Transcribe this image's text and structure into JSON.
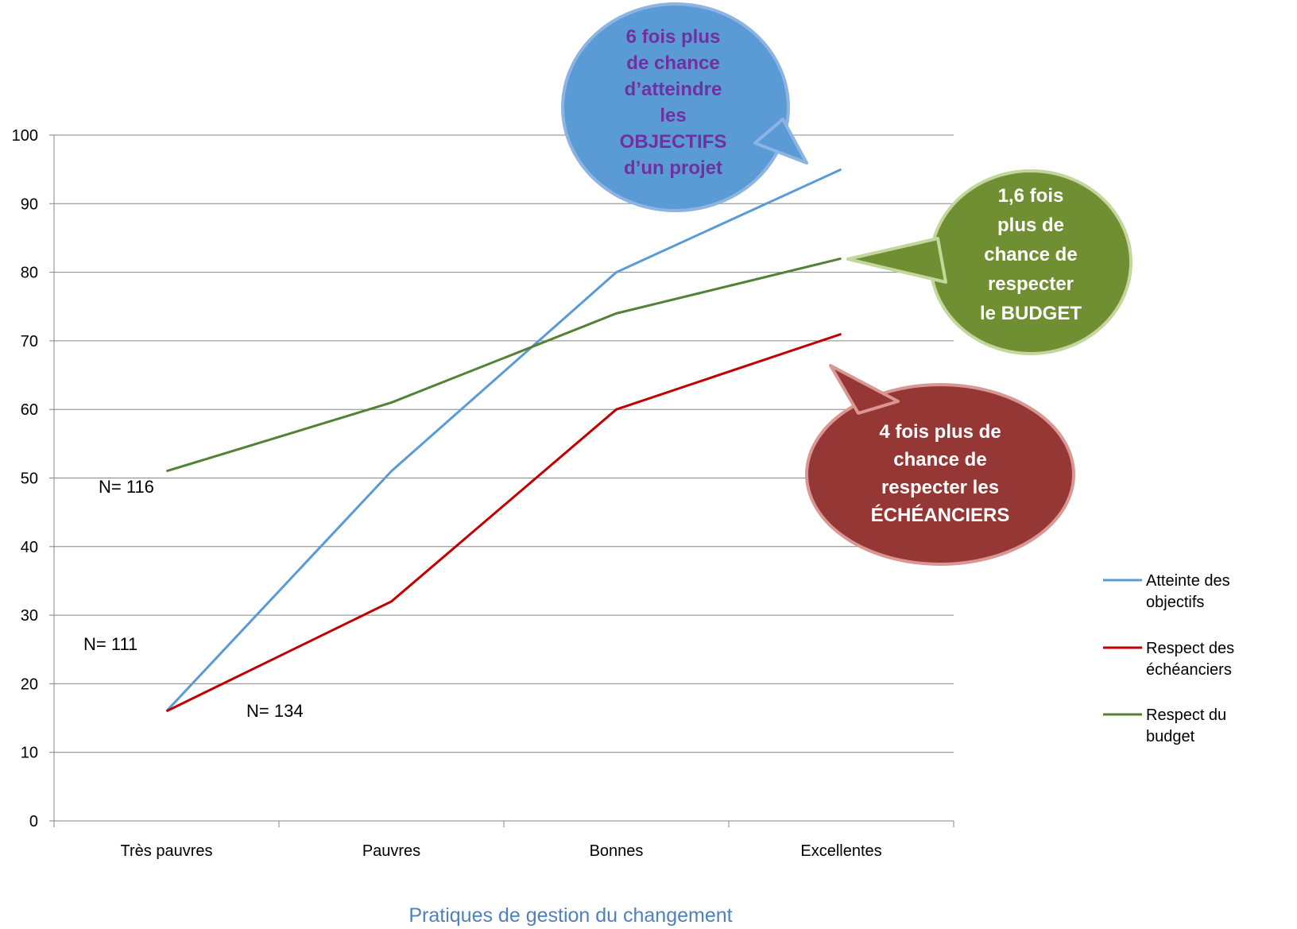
{
  "chart_data": {
    "type": "line",
    "categories": [
      "Très pauvres",
      "Pauvres",
      "Bonnes",
      "Excellentes"
    ],
    "series": [
      {
        "name": "Atteinte des objectifs",
        "legend_lines": [
          "Atteinte des",
          "objectifs"
        ],
        "color": "#5b9bd5",
        "values": [
          16,
          51,
          80,
          95
        ]
      },
      {
        "name": "Respect des échéanciers",
        "legend_lines": [
          "Respect des",
          "échéanciers"
        ],
        "color": "#c00000",
        "values": [
          16,
          32,
          60,
          71
        ]
      },
      {
        "name": "Respect du budget",
        "legend_lines": [
          "Respect du",
          "budget"
        ],
        "color": "#538135",
        "values": [
          51,
          61,
          74,
          82
        ]
      }
    ],
    "xlabel": "Pratiques de gestion du changement",
    "ylabel": "",
    "ylim": [
      0,
      100
    ],
    "yticks": [
      0,
      10,
      20,
      30,
      40,
      50,
      60,
      70,
      80,
      90,
      100
    ],
    "grid": true,
    "legend": "right",
    "annotations": {
      "sample_sizes": [
        {
          "label": "N= 116",
          "series": "Respect du budget"
        },
        {
          "label": "N= 111",
          "series": "Atteinte des objectifs"
        },
        {
          "label": "N= 134",
          "series": "Respect des échéanciers"
        }
      ],
      "callouts": [
        {
          "series": "Atteinte des objectifs",
          "lines": [
            "6 fois plus",
            "de chance",
            "d’atteindre",
            "les",
            "OBJECTIFS",
            "d’un projet"
          ],
          "fill": "#5b9bd5",
          "text_color": "#7030a0"
        },
        {
          "series": "Respect du budget",
          "lines": [
            "1,6 fois",
            "plus de",
            "chance de",
            "respecter",
            "le BUDGET"
          ],
          "fill": "#6f8f32",
          "text_color": "#ffffff"
        },
        {
          "series": "Respect des échéanciers",
          "lines": [
            "4 fois plus de",
            "chance de",
            "respecter les",
            "ÉCHÉANCIERS"
          ],
          "fill": "#953735",
          "text_color": "#ffffff"
        }
      ]
    }
  }
}
